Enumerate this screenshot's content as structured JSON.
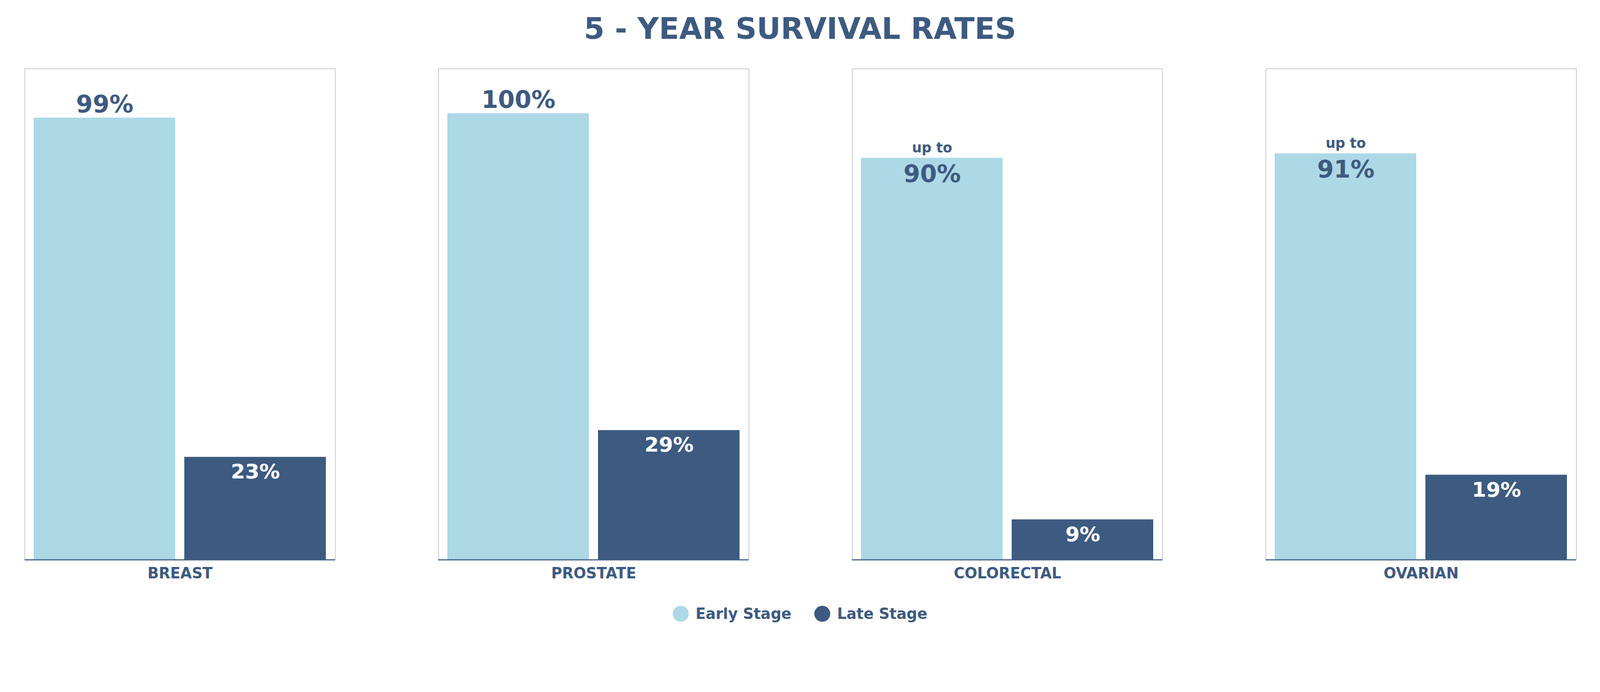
{
  "chart_data": {
    "type": "bar",
    "title": "5 - YEAR SURVIVAL RATES",
    "categories": [
      "BREAST",
      "PROSTATE",
      "COLORECTAL",
      "OVARIAN"
    ],
    "series": [
      {
        "name": "Early Stage",
        "color": "#add8e6",
        "values": [
          99,
          100,
          90,
          91
        ],
        "value_labels": [
          "99%",
          "100%",
          "90%",
          "91%"
        ]
      },
      {
        "name": "Late Stage",
        "color": "#3d5a80",
        "values": [
          23,
          29,
          9,
          19
        ],
        "value_labels": [
          "23%",
          "29%",
          "9%",
          "19%"
        ]
      }
    ],
    "annotations": [
      {
        "text": "up to",
        "series": "Early Stage",
        "category": "COLORECTAL"
      },
      {
        "text": "up to",
        "series": "Early Stage",
        "category": "OVARIAN"
      }
    ],
    "ylim": [
      0,
      110
    ],
    "yticks": [],
    "grid": false,
    "tick_labels": "x",
    "data_labels": true,
    "legend": "bottom"
  }
}
